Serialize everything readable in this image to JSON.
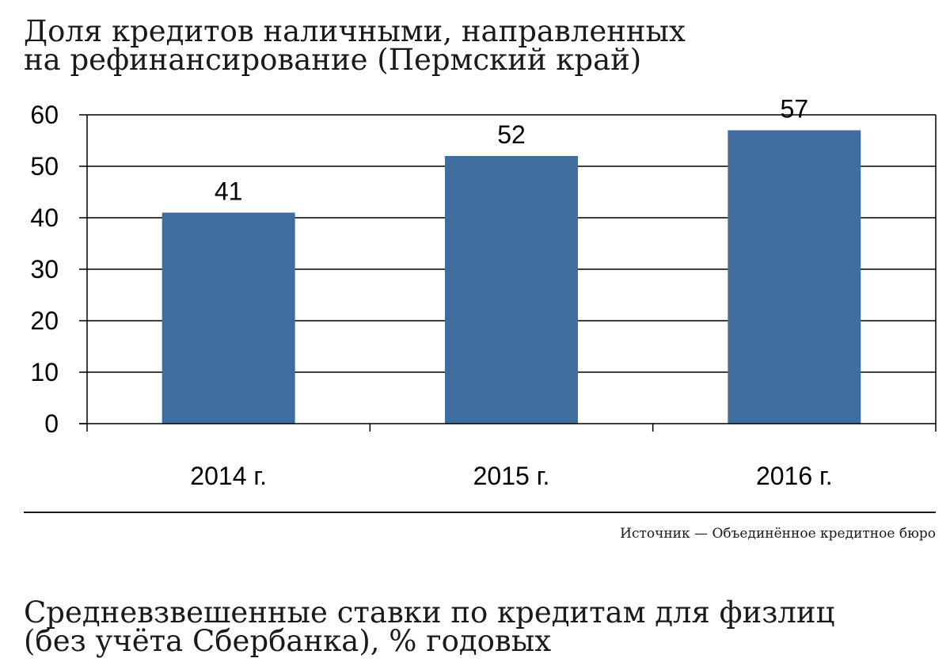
{
  "chart_data": {
    "type": "bar",
    "title": [
      "Доля кредитов наличными, направленных",
      "на рефинансирование (Пермский край)"
    ],
    "categories": [
      "2014 г.",
      "2015 г.",
      "2016 г."
    ],
    "values": [
      41,
      52,
      57
    ],
    "data_labels": [
      "41",
      "52",
      "57"
    ],
    "yticks": [
      "0",
      "10",
      "20",
      "30",
      "40",
      "50",
      "60"
    ],
    "ylim": [
      0,
      60
    ],
    "grid": true,
    "bar_color": "#3f6d9e"
  },
  "source": "Источник — Объединённое кредитное бюро",
  "next_section": {
    "title": [
      "Средневзвешенные ставки по кредитам для физлиц",
      "(без учёта Сбербанка), % годовых"
    ]
  }
}
